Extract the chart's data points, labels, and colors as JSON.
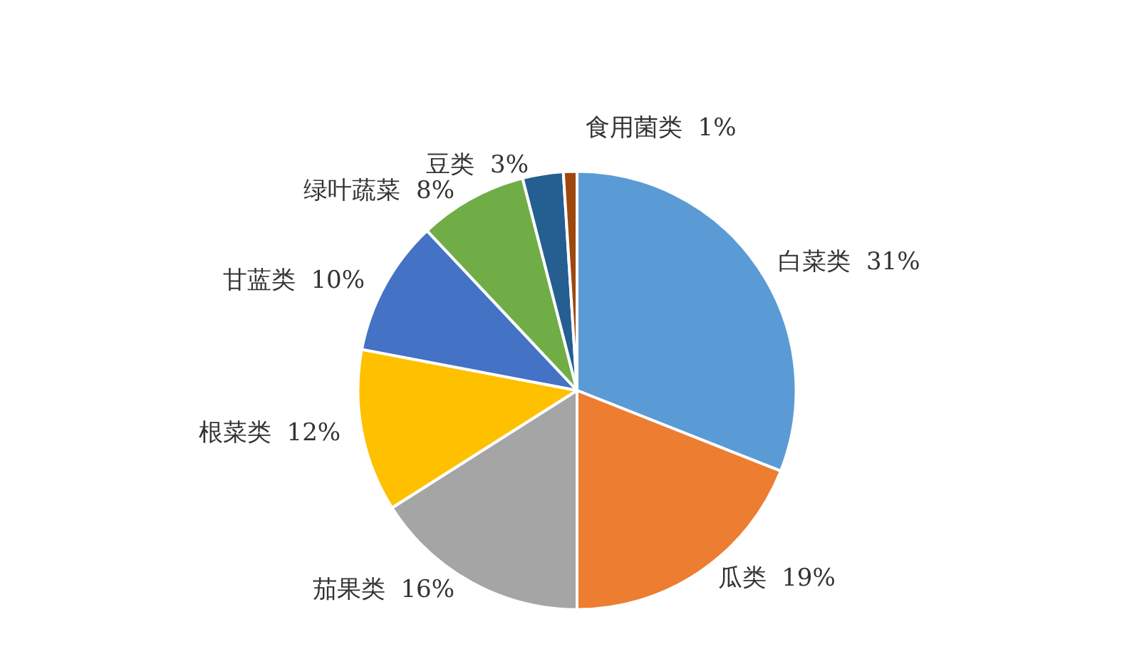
{
  "chart_data": {
    "type": "pie",
    "categories": [
      "白菜类",
      "瓜类",
      "茄果类",
      "根菜类",
      "甘蓝类",
      "绿叶蔬菜",
      "豆类",
      "食用菌类"
    ],
    "values": [
      31,
      19,
      16,
      12,
      10,
      8,
      3,
      1
    ],
    "value_labels": [
      "31%",
      "19%",
      "16%",
      "12%",
      "10%",
      "8%",
      "3%",
      "1%"
    ],
    "colors": [
      "#5b9bd5",
      "#ed7d31",
      "#a5a5a5",
      "#ffc000",
      "#4472c4",
      "#70ad47",
      "#255e91",
      "#9e480e"
    ],
    "legend": false
  }
}
